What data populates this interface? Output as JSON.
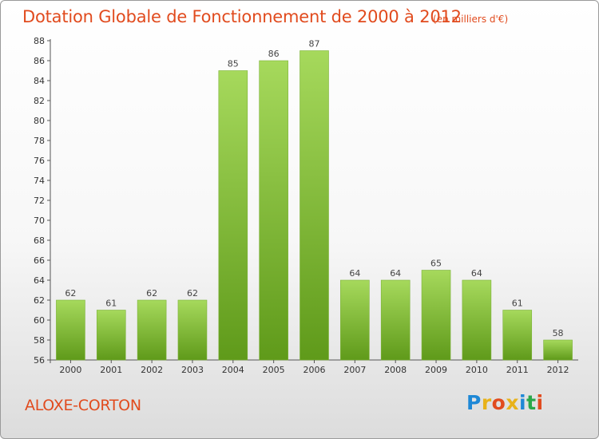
{
  "header": {
    "title": "Dotation Globale de Fonctionnement de 2000 à 2012",
    "unit_note": "(en milliers d'€)"
  },
  "footer": {
    "commune": "ALOXE-CORTON",
    "logo": [
      "P",
      "r",
      "o",
      "x",
      "i",
      "t",
      "i"
    ],
    "logo_colors": [
      "#1e88d6",
      "#e8b21a",
      "#e14b1e",
      "#e8b21a",
      "#1e88d6",
      "#2aa84a",
      "#e14b1e"
    ]
  },
  "colors": {
    "text_accent": "#e14b1e",
    "bar_top": "#a6d95c",
    "bar_bottom": "#5f9a1a",
    "axis": "#555555"
  },
  "chart_data": {
    "type": "bar",
    "categories": [
      "2000",
      "2001",
      "2002",
      "2003",
      "2004",
      "2005",
      "2006",
      "2007",
      "2008",
      "2009",
      "2010",
      "2011",
      "2012"
    ],
    "values": [
      62,
      61,
      62,
      62,
      85,
      86,
      87,
      64,
      64,
      65,
      64,
      61,
      58
    ],
    "ylim": [
      56,
      88
    ],
    "yticks": [
      56,
      58,
      60,
      62,
      64,
      66,
      68,
      70,
      72,
      74,
      76,
      78,
      80,
      82,
      84,
      86,
      88
    ],
    "grid": false,
    "title": "Dotation Globale de Fonctionnement de 2000 à 2012",
    "subtitle": "(en milliers d'€)",
    "xlabel": "",
    "ylabel": ""
  }
}
